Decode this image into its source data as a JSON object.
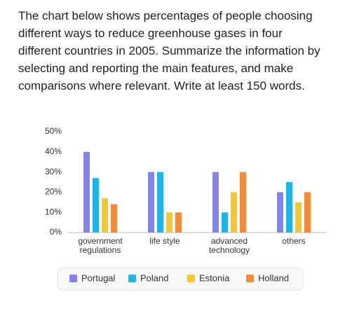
{
  "prompt": {
    "lines": [
      "The chart below shows percentages of people choosing",
      "different ways to reduce greenhouse gases in four",
      "different countries in 2005. Summarize the information by",
      "selecting and reporting the main features, and make",
      "comparisons where relevant. Write at least 150 words."
    ]
  },
  "chart_data": {
    "type": "bar",
    "categories": [
      "government regulations",
      "life style",
      "advanced technology",
      "others"
    ],
    "series": [
      {
        "name": "Portugal",
        "color": "#8383ef",
        "values": [
          40,
          30,
          30,
          20
        ]
      },
      {
        "name": "Poland",
        "color": "#21b4ea",
        "values": [
          27,
          30,
          10,
          25
        ]
      },
      {
        "name": "Estonia",
        "color": "#f7c730",
        "values": [
          17,
          10,
          20,
          15
        ]
      },
      {
        "name": "Holland",
        "color": "#f38b3c",
        "values": [
          14,
          10,
          30,
          20
        ]
      }
    ],
    "ylim": [
      0,
      50
    ],
    "yticks": [
      {
        "value": 0,
        "label": "0%"
      },
      {
        "value": 10,
        "label": "10%"
      },
      {
        "value": 20,
        "label": "20%"
      },
      {
        "value": 30,
        "label": "30%"
      },
      {
        "value": 40,
        "label": "40%"
      },
      {
        "value": 50,
        "label": "50%"
      }
    ],
    "legend": "bottom"
  }
}
